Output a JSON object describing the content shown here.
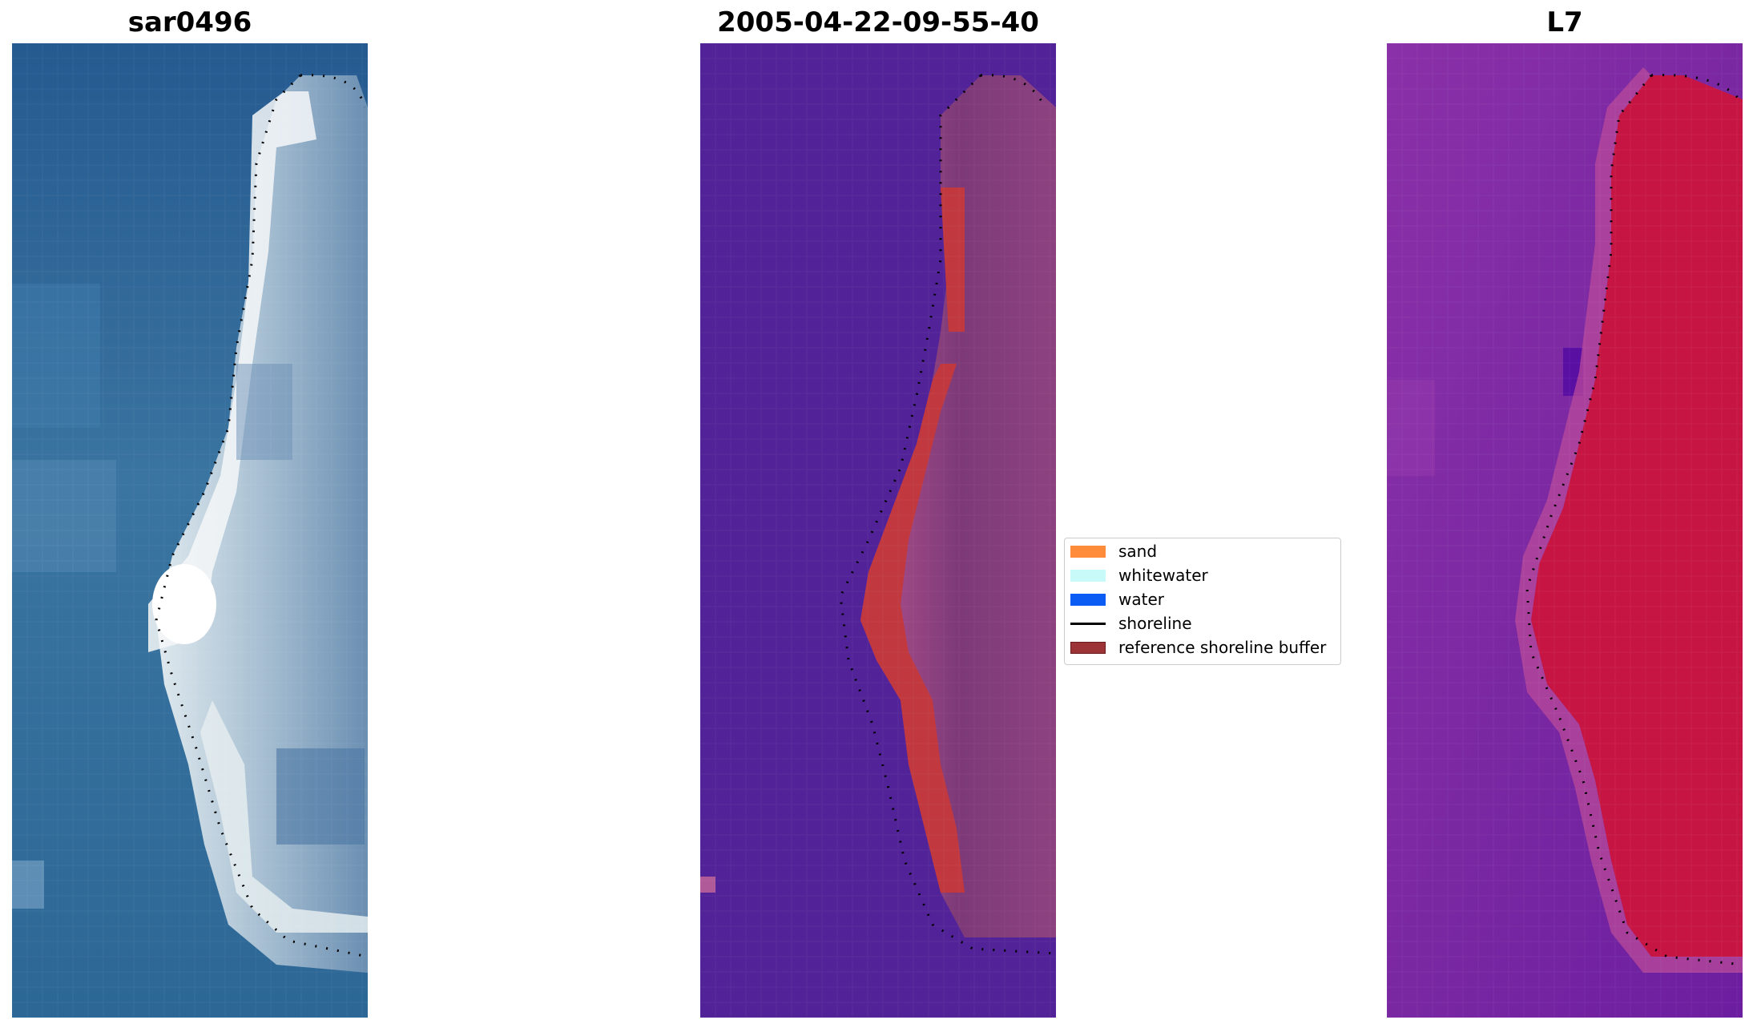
{
  "panels": [
    {
      "title": "sar0496"
    },
    {
      "title": "2005-04-22-09-55-40"
    },
    {
      "title": "L7"
    }
  ],
  "legend": {
    "items": [
      {
        "label": "sand",
        "color": "#ff8c3a",
        "kind": "patch"
      },
      {
        "label": "whitewater",
        "color": "#c8fafa",
        "kind": "patch"
      },
      {
        "label": "water",
        "color": "#0a5cf5",
        "kind": "patch"
      },
      {
        "label": "shoreline",
        "color": "#000000",
        "kind": "line"
      },
      {
        "label": "reference shoreline buffer",
        "color": "#9c3337",
        "kind": "patch"
      }
    ]
  },
  "colors": {
    "rgb_water": "#2c5f91",
    "rgb_beach": "#dfe7ea",
    "classified_water": "#522398",
    "classified_land": "#8a3f7d",
    "buffer": "#c1383f",
    "mndwi_water": "#7a2aa4",
    "mndwi_land": "#c8103f"
  }
}
